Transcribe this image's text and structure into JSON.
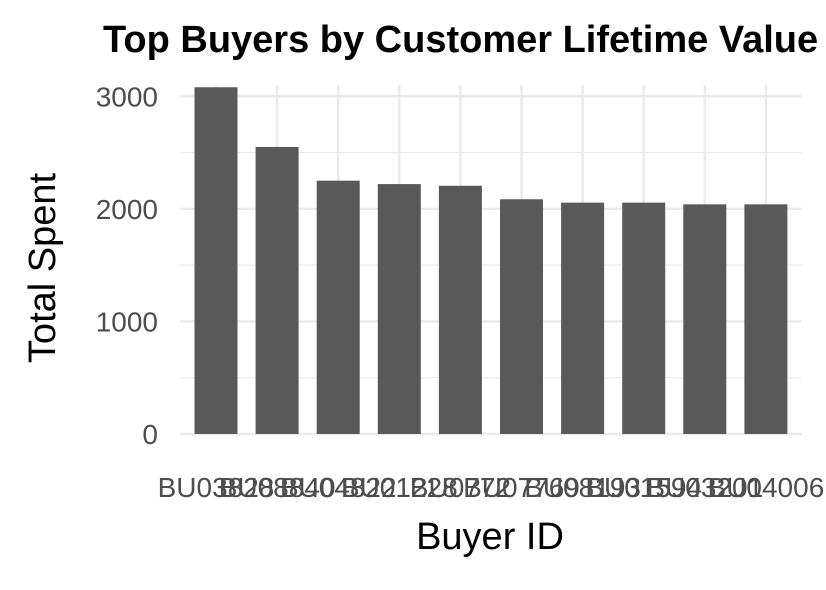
{
  "chart_data": {
    "type": "bar",
    "title": "Top Buyers by Customer Lifetime Value",
    "xlabel": "Buyer ID",
    "ylabel": "Total Spent",
    "categories": [
      "BU03828",
      "BU08840",
      "BU04822",
      "BU01228",
      "BU0772",
      "BU07769",
      "BU08193",
      "BU01594",
      "BU03201",
      "BU04006"
    ],
    "values": [
      3080,
      2550,
      2250,
      2220,
      2205,
      2085,
      2055,
      2055,
      2040,
      2040
    ],
    "ylim": [
      0,
      3100
    ],
    "yticks": [
      0,
      1000,
      2000,
      3000
    ],
    "grid": true,
    "bar_color": "#595959"
  }
}
